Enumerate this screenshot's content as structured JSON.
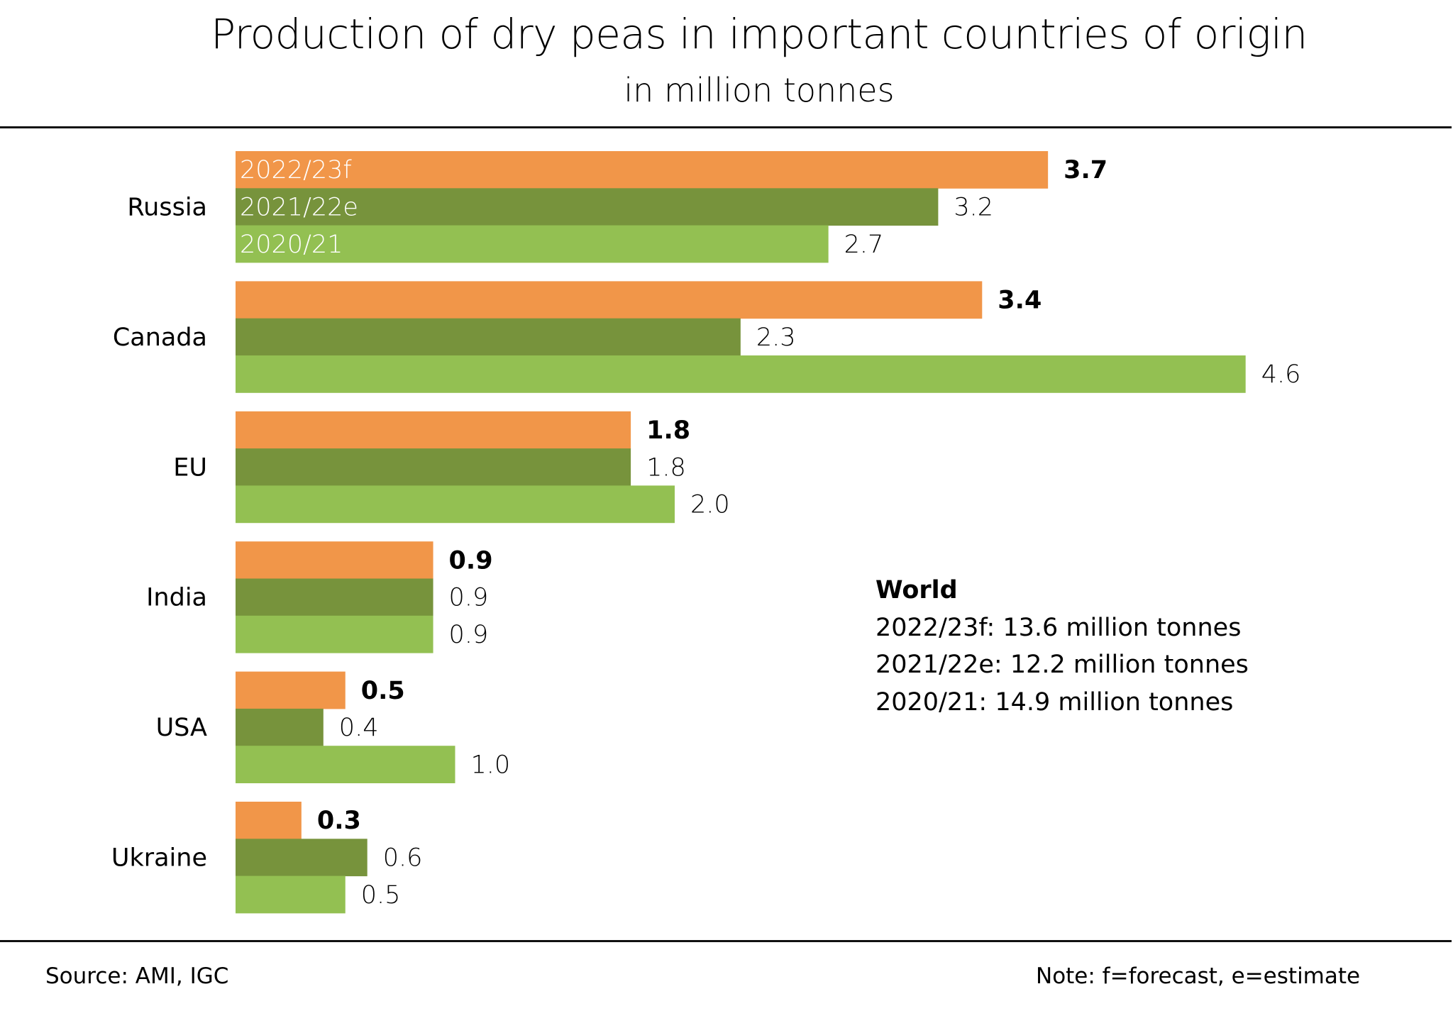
{
  "header": {
    "title": "Production of dry peas in important countries of origin",
    "subtitle": "in million tonnes"
  },
  "colors": {
    "2022/23f": "#F19649",
    "2021/22e": "#77933C",
    "2020/21": "#93C052"
  },
  "chart_data": {
    "type": "bar",
    "orientation": "horizontal",
    "title": "Production of dry peas in important countries of origin",
    "subtitle": "in million tonnes",
    "xlabel": "",
    "ylabel": "",
    "xlim": [
      0,
      4.6
    ],
    "grid": false,
    "legend_placement": "inside-first-group-bars",
    "categories": [
      "Russia",
      "Canada",
      "EU",
      "India",
      "USA",
      "Ukraine"
    ],
    "series": [
      {
        "name": "2022/23f",
        "values": [
          3.7,
          3.4,
          1.8,
          0.9,
          0.5,
          0.3
        ],
        "labels": [
          "3.7",
          "3.4",
          "1.8",
          "0.9",
          "0.5",
          "0.3"
        ]
      },
      {
        "name": "2021/22e",
        "values": [
          3.2,
          2.3,
          1.8,
          0.9,
          0.4,
          0.6
        ],
        "labels": [
          "3.2",
          "2.3",
          "1.8",
          "0.9",
          "0.4",
          "0.6"
        ]
      },
      {
        "name": "2020/21",
        "values": [
          2.7,
          4.6,
          2.0,
          0.9,
          1.0,
          0.5
        ],
        "labels": [
          "2.7",
          "4.6",
          "2.0",
          "0.9",
          "1.0",
          "0.5"
        ]
      }
    ],
    "annotations": {
      "world_title": "World",
      "world_lines": [
        "2022/23f: 13.6 million tonnes",
        "2021/22e: 12.2 million tonnes",
        "2020/21: 14.9 million tonnes"
      ]
    }
  },
  "footer": {
    "source": "Source:  AMI, IGC",
    "note": "Note: f=forecast, e=estimate"
  }
}
